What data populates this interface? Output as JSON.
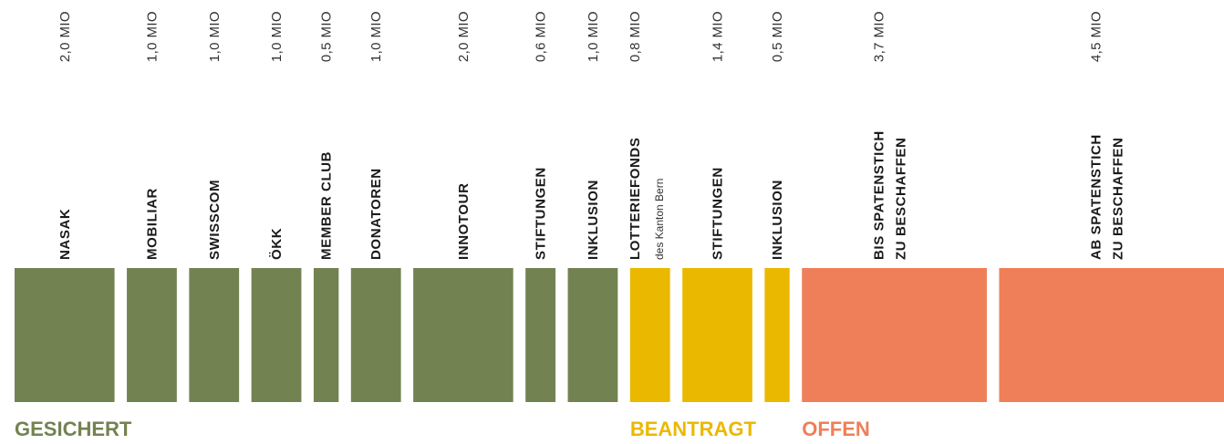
{
  "chart_data": {
    "type": "proportional-strip",
    "series": [
      {
        "name": "GESICHERT",
        "color": "#738251",
        "categories": [
          [
            "NASAK"
          ],
          [
            "MOBILIAR"
          ],
          [
            "SWISSCOM"
          ],
          [
            "ÖKK"
          ],
          [
            "MEMBER CLUB"
          ],
          [
            "DONATOREN"
          ],
          [
            "INNOTOUR"
          ],
          [
            "STIFTUNGEN"
          ],
          [
            "INKLUSION"
          ]
        ],
        "values": [
          2.0,
          1.0,
          1.0,
          1.0,
          0.5,
          1.0,
          2.0,
          0.6,
          1.0
        ],
        "value_labels": [
          "2,0 MIO",
          "1,0 MIO",
          "1,0 MIO",
          "1,0 MIO",
          "0,5 MIO",
          "1,0 MIO",
          "2,0 MIO",
          "0,6 MIO",
          "1,0 MIO"
        ]
      },
      {
        "name": "BEANTRAGT",
        "color": "#ebb800",
        "categories": [
          [
            "LOTTERIEFONDS",
            "des Kanton Bern"
          ],
          [
            "STIFTUNGEN"
          ],
          [
            "INKLUSION"
          ]
        ],
        "values": [
          0.8,
          1.4,
          0.5
        ],
        "value_labels": [
          "0,8 MIO",
          "1,4 MIO",
          "0,5 MIO"
        ]
      },
      {
        "name": "OFFEN",
        "color": "#ee7f58",
        "categories": [
          [
            "BIS SPATENSTICH",
            "ZU BESCHAFFEN"
          ],
          [
            "AB SPATENSTICH",
            "ZU BESCHAFFEN"
          ]
        ],
        "values": [
          3.7,
          4.5
        ],
        "value_labels": [
          "3,7 MIO",
          "4,5 MIO"
        ]
      }
    ]
  }
}
